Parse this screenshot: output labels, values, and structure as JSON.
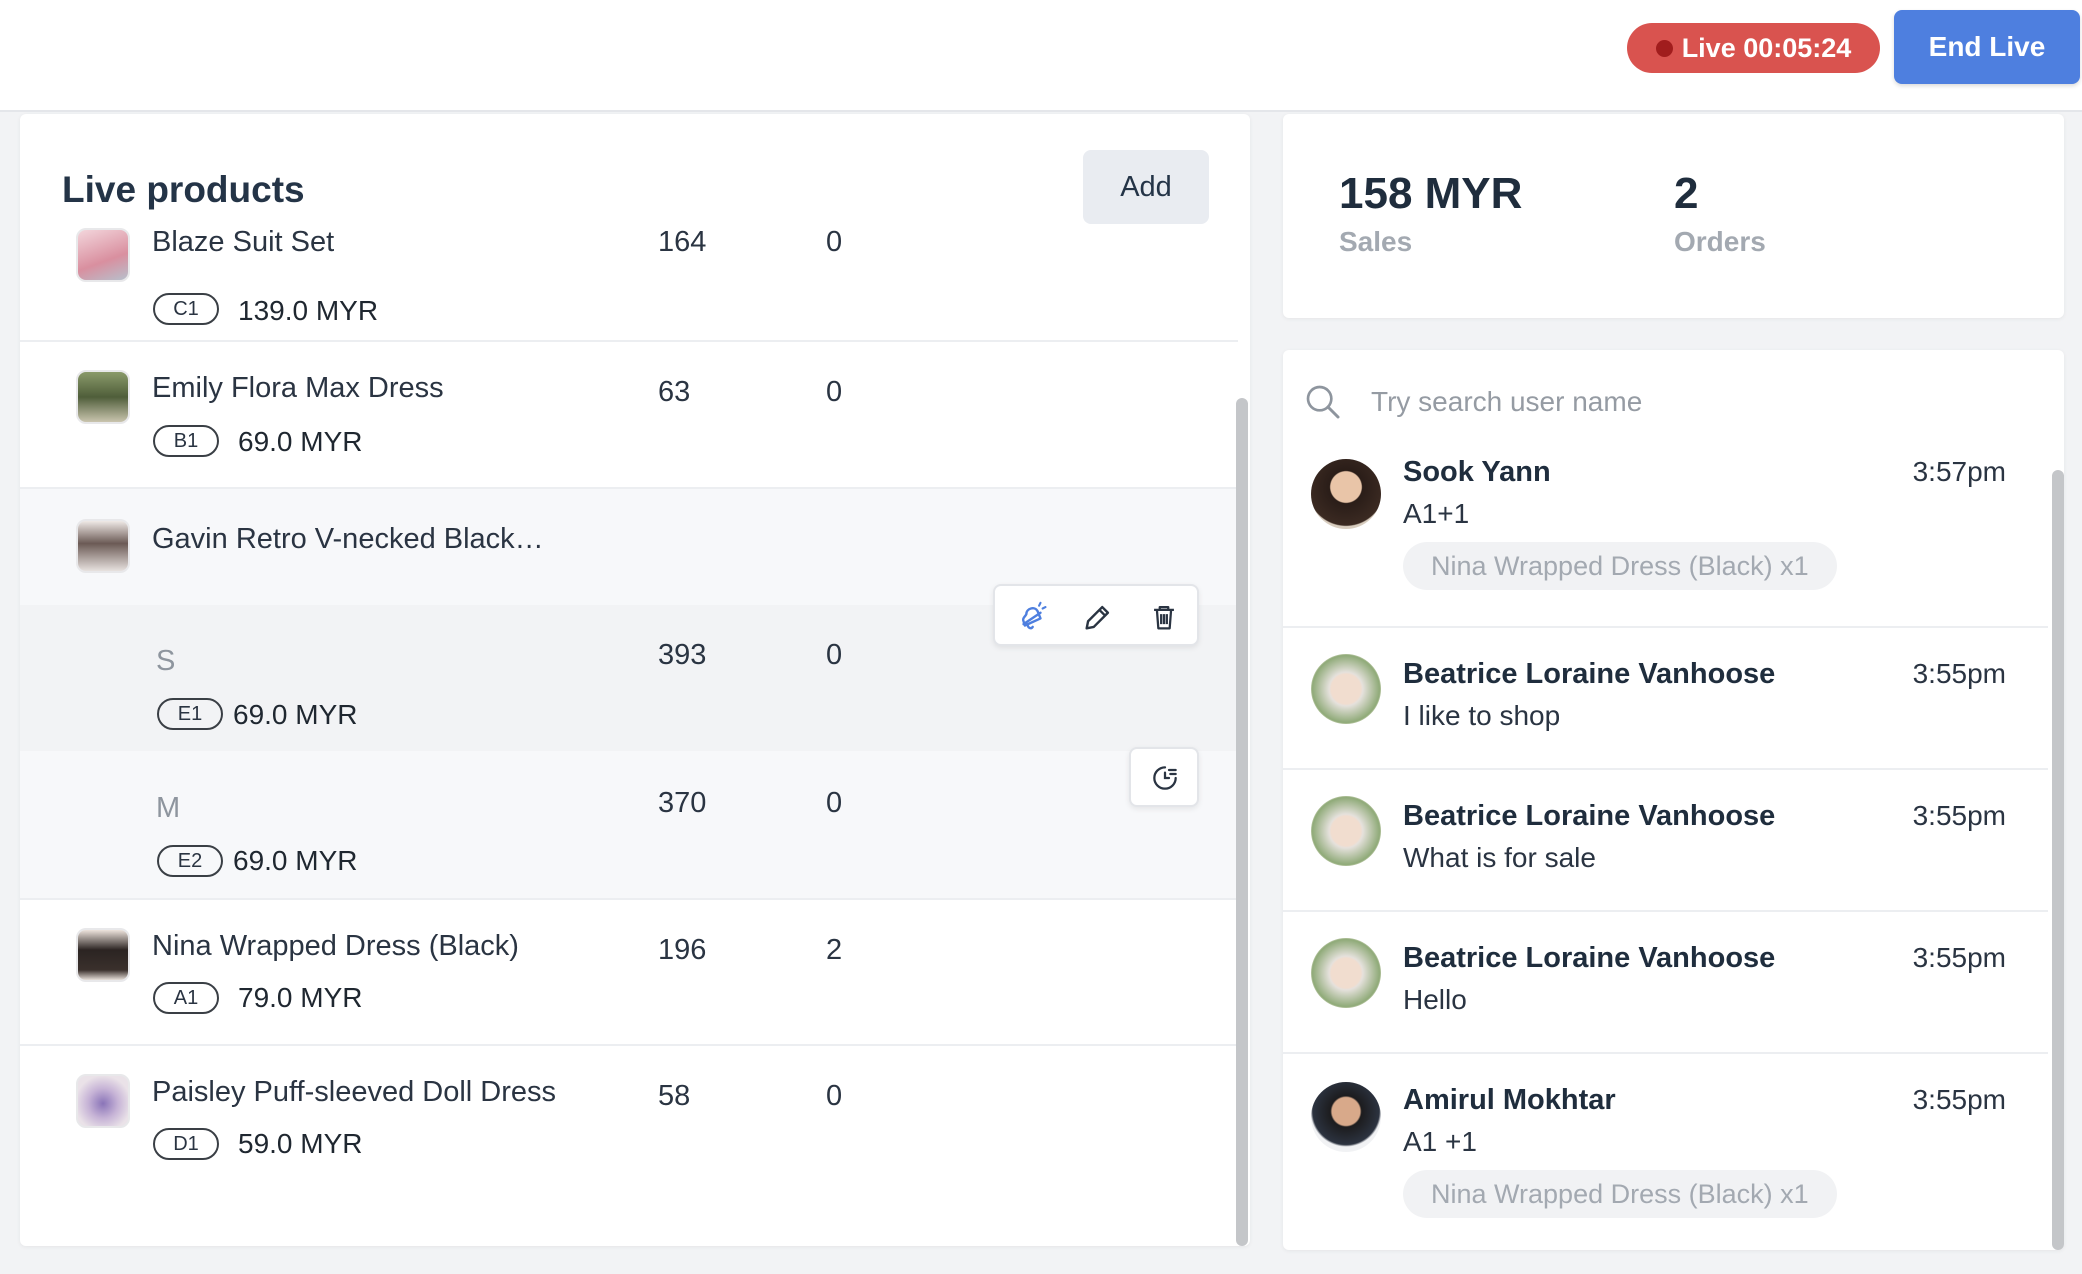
{
  "header": {
    "live_label": "Live 00:05:24",
    "end_live_label": "End Live",
    "live_color": "#d9534f",
    "accent_color": "#4e7fdf"
  },
  "products": {
    "title": "Live products",
    "add_label": "Add",
    "partial_row": {
      "name": "Blaze Suit Set",
      "code": "C1",
      "price": "139.0 MYR",
      "qty": "164",
      "sold": "0"
    },
    "items": [
      {
        "name": "Emily Flora Max Dress",
        "code": "B1",
        "price": "69.0 MYR",
        "qty": "63",
        "sold": "0"
      },
      {
        "name": "Gavin Retro V-necked Black…",
        "variants": [
          {
            "name": "S",
            "code": "E1",
            "price": "69.0 MYR",
            "qty": "393",
            "sold": "0"
          },
          {
            "name": "M",
            "code": "E2",
            "price": "69.0 MYR",
            "qty": "370",
            "sold": "0"
          }
        ]
      },
      {
        "name": "Nina Wrapped Dress (Black)",
        "code": "A1",
        "price": "79.0 MYR",
        "qty": "196",
        "sold": "2"
      },
      {
        "name": "Paisley Puff-sleeved Doll Dress",
        "code": "D1",
        "price": "59.0 MYR",
        "qty": "58",
        "sold": "0"
      }
    ],
    "row_actions": [
      "bell-icon",
      "pencil-icon",
      "trash-icon"
    ],
    "variant_action": "clock-icon"
  },
  "stats": {
    "sales_value": "158 MYR",
    "sales_label": "Sales",
    "orders_value": "2",
    "orders_label": "Orders"
  },
  "chat": {
    "search_placeholder": "Try search user name",
    "messages": [
      {
        "user": "Sook Yann",
        "time": "3:57pm",
        "text": "A1+1",
        "order": "Nina Wrapped Dress (Black) x1"
      },
      {
        "user": "Beatrice Loraine Vanhoose",
        "time": "3:55pm",
        "text": "I like to shop"
      },
      {
        "user": "Beatrice Loraine Vanhoose",
        "time": "3:55pm",
        "text": "What is for sale"
      },
      {
        "user": "Beatrice Loraine Vanhoose",
        "time": "3:55pm",
        "text": "Hello"
      },
      {
        "user": "Amirul Mokhtar",
        "time": "3:55pm",
        "text": "A1 +1",
        "order": "Nina Wrapped Dress (Black) x1"
      }
    ]
  }
}
